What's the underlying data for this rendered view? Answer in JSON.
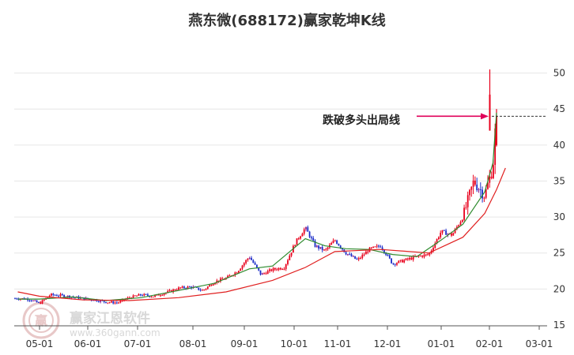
{
  "chart_data": {
    "type": "candlestick",
    "title": "燕东微(688172)赢家乾坤K线",
    "xlabel": "",
    "ylabel": "",
    "ylim": [
      15,
      50.5
    ],
    "y_ticks": [
      15,
      20,
      25,
      30,
      35,
      40,
      45,
      50
    ],
    "x_ticks": [
      "05-01",
      "06-01",
      "07-01",
      "08-01",
      "09-01",
      "10-01",
      "11-01",
      "12-01",
      "01-01",
      "02-01",
      "03-01"
    ],
    "grid": "horizontal",
    "annotation": {
      "text": "跌破多头出局线",
      "target_price": 44.0
    },
    "reference_price": 44.0,
    "up_color": "#e8001c",
    "down_color": "#1a2cc8",
    "neutral_color": "#8b1a8b",
    "ma_short_color": "#2e8b2e",
    "ma_long_color": "#e02020",
    "ref_line_color": "#333333",
    "watermark": {
      "text": "赢家江恩软件",
      "url": "www.360gann.com",
      "logo_text": "赢"
    },
    "series": [
      {
        "name": "close",
        "x": [
          "04-17",
          "04-24",
          "05-01",
          "05-08",
          "05-15",
          "05-22",
          "05-29",
          "06-05",
          "06-12",
          "06-19",
          "06-26",
          "07-03",
          "07-10",
          "07-17",
          "07-24",
          "07-31",
          "08-07",
          "08-14",
          "08-21",
          "08-28",
          "09-04",
          "09-11",
          "09-18",
          "09-25",
          "10-02",
          "10-09",
          "10-16",
          "10-23",
          "10-30",
          "11-06",
          "11-13",
          "11-20",
          "11-27",
          "12-04",
          "12-11",
          "12-18",
          "12-25",
          "01-01",
          "01-08",
          "01-15",
          "01-22",
          "01-29",
          "02-03",
          "02-05"
        ],
        "values": [
          18.7,
          18.6,
          18.0,
          19.2,
          19.1,
          18.9,
          18.7,
          18.5,
          18.2,
          18.1,
          18.8,
          19.2,
          19.0,
          19.5,
          20.1,
          20.3,
          19.8,
          21.0,
          21.5,
          22.5,
          24.5,
          22.0,
          22.7,
          23.0,
          26.5,
          28.5,
          26.0,
          25.3,
          26.8,
          25.0,
          24.0,
          25.5,
          26.0,
          23.5,
          24.0,
          24.5,
          24.8,
          28.0,
          27.5,
          30.0,
          35.0,
          33.0,
          37.0,
          45.0
        ]
      },
      {
        "name": "ma_short",
        "x": [
          "04-17",
          "05-01",
          "05-22",
          "06-12",
          "07-03",
          "07-24",
          "08-14",
          "09-04",
          "09-18",
          "10-09",
          "10-23",
          "11-06",
          "11-20",
          "12-04",
          "12-18",
          "01-01",
          "01-15",
          "01-29",
          "02-03",
          "02-05"
        ],
        "values": [
          18.6,
          18.6,
          18.9,
          18.4,
          18.8,
          19.8,
          20.8,
          22.8,
          23.2,
          27.0,
          26.0,
          25.6,
          25.5,
          24.8,
          24.5,
          26.8,
          29.0,
          33.5,
          37.5,
          44.5
        ]
      },
      {
        "name": "ma_long",
        "x": [
          "04-17",
          "05-01",
          "05-29",
          "06-26",
          "07-24",
          "08-21",
          "09-18",
          "10-09",
          "10-30",
          "11-27",
          "12-25",
          "01-15",
          "01-29",
          "02-05",
          "02-10"
        ],
        "values": [
          19.6,
          19.0,
          18.5,
          18.4,
          18.8,
          19.6,
          21.2,
          23.0,
          25.2,
          25.5,
          25.0,
          27.2,
          30.5,
          33.8,
          36.8
        ]
      }
    ]
  }
}
